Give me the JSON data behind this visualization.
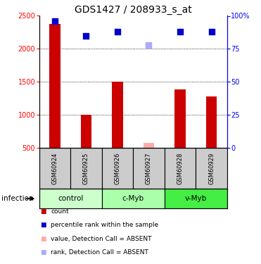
{
  "title": "GDS1427 / 208933_s_at",
  "samples": [
    "GSM60924",
    "GSM60925",
    "GSM60926",
    "GSM60927",
    "GSM60928",
    "GSM60929"
  ],
  "counts": [
    2380,
    1000,
    1500,
    null,
    1390,
    1280
  ],
  "counts_absent": [
    null,
    null,
    null,
    580,
    null,
    null
  ],
  "percentile_ranks": [
    96,
    85,
    88,
    null,
    88,
    88
  ],
  "percentile_ranks_absent": [
    null,
    null,
    null,
    78,
    null,
    null
  ],
  "groups": [
    {
      "name": "control",
      "samples": [
        0,
        1
      ],
      "color": "#ccffcc"
    },
    {
      "name": "c-Myb",
      "samples": [
        2,
        3
      ],
      "color": "#aaffaa"
    },
    {
      "name": "v-Myb",
      "samples": [
        4,
        5
      ],
      "color": "#44ee44"
    }
  ],
  "ylim_left": [
    500,
    2500
  ],
  "ylim_right": [
    0,
    100
  ],
  "yticks_left": [
    500,
    1000,
    1500,
    2000,
    2500
  ],
  "yticks_right": [
    0,
    25,
    50,
    75,
    100
  ],
  "ytick_labels_right": [
    "0",
    "25",
    "50",
    "75",
    "100%"
  ],
  "bar_color": "#cc0000",
  "bar_color_absent": "#ffaaaa",
  "dot_color": "#0000cc",
  "dot_color_absent": "#aaaaff",
  "bar_width": 0.35,
  "dot_size": 30,
  "sample_box_color": "#cccccc",
  "title_fontsize": 10,
  "tick_fontsize": 7,
  "infection_label": "infection",
  "group_colors": [
    "#ccffcc",
    "#aaffaa",
    "#44ee44"
  ]
}
